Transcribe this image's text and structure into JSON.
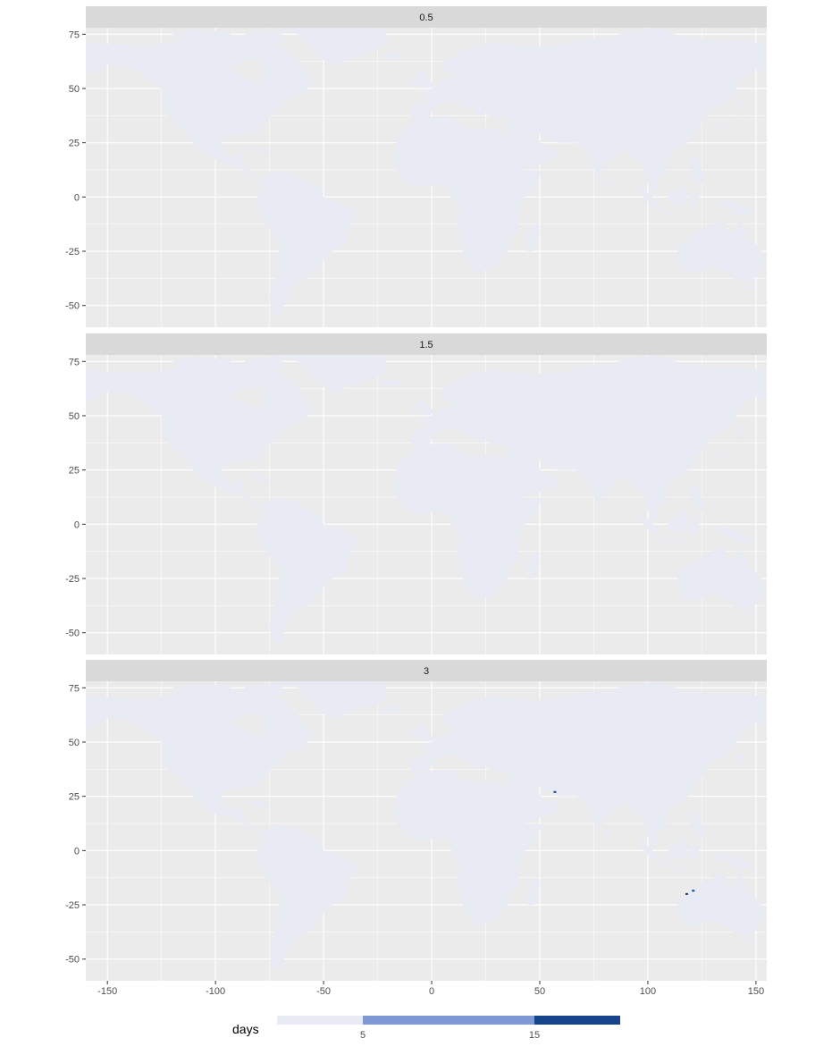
{
  "chart_data": {
    "type": "heatmap",
    "description_kind": "faceted world map",
    "facets": [
      "0.5",
      "1.5",
      "3"
    ],
    "x_ticks": [
      "-150",
      "-100",
      "-50",
      "0",
      "50",
      "100",
      "150"
    ],
    "y_ticks": [
      "75",
      "50",
      "25",
      "0",
      "-25",
      "-50"
    ],
    "xlim": [
      -160,
      155
    ],
    "ylim": [
      -60,
      78
    ],
    "legend": {
      "title": "days",
      "breaks": [
        "5",
        "15"
      ],
      "bins": [
        {
          "range": [
            0,
            5
          ],
          "color": "#e8eaf4"
        },
        {
          "range": [
            5,
            15
          ],
          "color": "#7f99d4"
        },
        {
          "range": [
            15,
            20
          ],
          "color": "#16458c"
        }
      ],
      "position": "bottom"
    },
    "colors": {
      "panel_bg": "#ebebeb",
      "grid": "#ffffff",
      "strip_bg": "#d9d9d9",
      "land": "#e8eaf4",
      "highlight": "#16458c"
    },
    "highlights": [
      {
        "facet": "3",
        "lon": 118,
        "lat": -20
      },
      {
        "facet": "3",
        "lon": 121,
        "lat": -18.5
      },
      {
        "facet": "3",
        "lon": 57,
        "lat": 27
      }
    ]
  }
}
